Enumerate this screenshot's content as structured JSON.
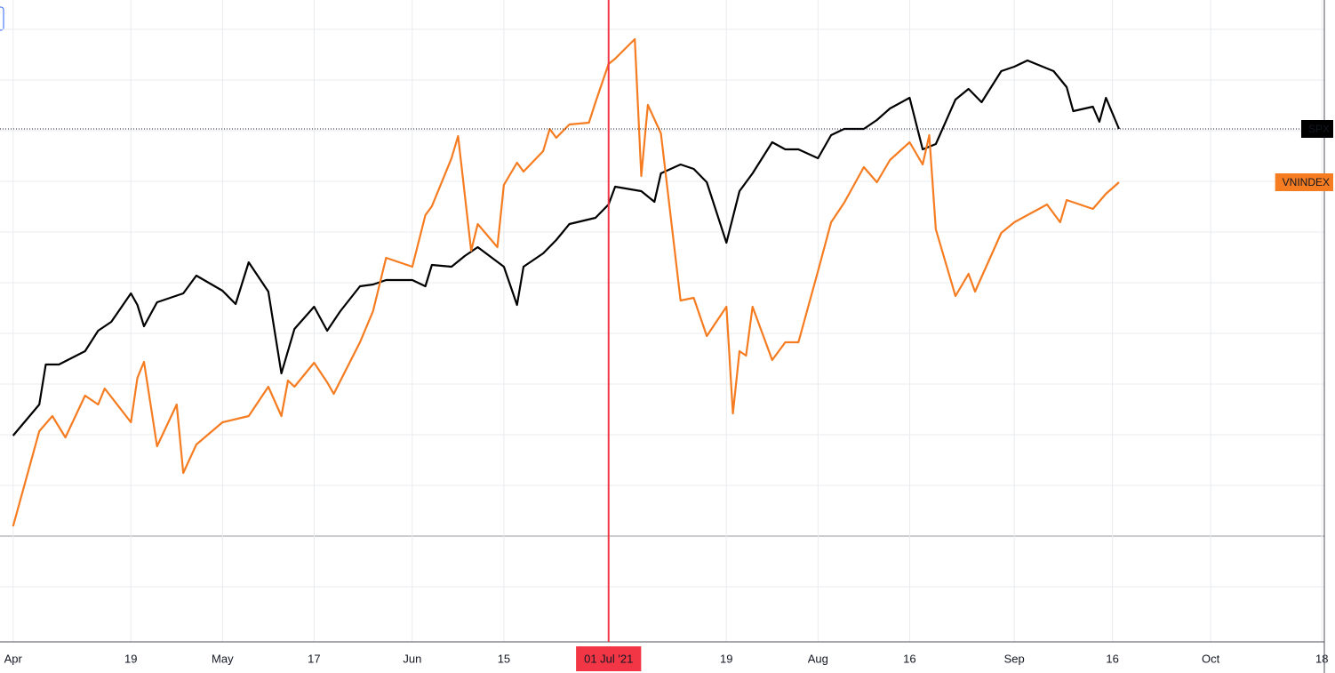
{
  "chart_data": {
    "type": "line",
    "xlim": [
      "2021-03-30",
      "2021-10-20"
    ],
    "ylim": [
      -11.9,
      60.3
    ],
    "yticks": [
      -5.7,
      0,
      5.7,
      11.4,
      17.1,
      22.8,
      28.5,
      34.2,
      39.9,
      45.6,
      51.3,
      57
    ],
    "grid": true,
    "xticks": [
      {
        "value": "2021-04-01",
        "label": "Apr"
      },
      {
        "value": "2021-04-19",
        "label": "19"
      },
      {
        "value": "2021-05-03",
        "label": "May"
      },
      {
        "value": "2021-05-17",
        "label": "17"
      },
      {
        "value": "2021-06-01",
        "label": "Jun"
      },
      {
        "value": "2021-06-15",
        "label": "15"
      },
      {
        "value": "2021-07-19",
        "label": "19"
      },
      {
        "value": "2021-08-02",
        "label": "Aug"
      },
      {
        "value": "2021-08-16",
        "label": "16"
      },
      {
        "value": "2021-09-01",
        "label": "Sep"
      },
      {
        "value": "2021-09-16",
        "label": "16"
      },
      {
        "value": "2021-10-01",
        "label": "Oct"
      },
      {
        "value": "2021-10-18",
        "label": "18"
      }
    ],
    "crosshair": {
      "x": "2021-07-01",
      "label": "01 Jul '21",
      "color": "#f23645"
    },
    "series": [
      {
        "name": "SPX",
        "color": "#000000",
        "x": [
          "2021-04-01",
          "2021-04-05",
          "2021-04-06",
          "2021-04-08",
          "2021-04-12",
          "2021-04-14",
          "2021-04-16",
          "2021-04-19",
          "2021-04-20",
          "2021-04-21",
          "2021-04-23",
          "2021-04-27",
          "2021-04-29",
          "2021-05-03",
          "2021-05-05",
          "2021-05-07",
          "2021-05-10",
          "2021-05-12",
          "2021-05-14",
          "2021-05-17",
          "2021-05-19",
          "2021-05-21",
          "2021-05-24",
          "2021-05-26",
          "2021-05-28",
          "2021-06-01",
          "2021-06-03",
          "2021-06-04",
          "2021-06-07",
          "2021-06-09",
          "2021-06-11",
          "2021-06-15",
          "2021-06-17",
          "2021-06-18",
          "2021-06-21",
          "2021-06-23",
          "2021-06-25",
          "2021-06-29",
          "2021-07-01",
          "2021-07-02",
          "2021-07-06",
          "2021-07-08",
          "2021-07-09",
          "2021-07-12",
          "2021-07-14",
          "2021-07-16",
          "2021-07-19",
          "2021-07-21",
          "2021-07-23",
          "2021-07-26",
          "2021-07-28",
          "2021-07-30",
          "2021-08-02",
          "2021-08-04",
          "2021-08-06",
          "2021-08-09",
          "2021-08-11",
          "2021-08-13",
          "2021-08-16",
          "2021-08-18",
          "2021-08-20",
          "2021-08-23",
          "2021-08-25",
          "2021-08-27",
          "2021-08-30",
          "2021-09-01",
          "2021-09-03",
          "2021-09-07",
          "2021-09-09",
          "2021-09-10",
          "2021-09-13",
          "2021-09-14",
          "2021-09-15",
          "2021-09-17"
        ],
        "values": [
          11.3,
          14.8,
          19.3,
          19.3,
          20.8,
          23.1,
          24.1,
          27.3,
          26.0,
          23.6,
          26.3,
          27.3,
          29.3,
          27.6,
          26.1,
          30.8,
          27.5,
          18.3,
          23.3,
          25.8,
          23.1,
          25.3,
          28.1,
          28.3,
          28.8,
          28.8,
          28.1,
          30.5,
          30.3,
          31.5,
          32.5,
          30.3,
          26.0,
          30.3,
          31.8,
          33.3,
          35.1,
          35.8,
          37.3,
          39.3,
          38.8,
          37.6,
          40.8,
          41.8,
          41.3,
          39.8,
          33.0,
          38.8,
          40.8,
          44.3,
          43.5,
          43.5,
          42.5,
          45.1,
          45.8,
          45.8,
          46.8,
          48.1,
          49.3,
          43.5,
          44.1,
          49.1,
          50.3,
          48.8,
          52.3,
          52.8,
          53.5,
          52.3,
          50.5,
          47.8,
          48.3,
          46.6,
          49.3,
          45.8
        ]
      },
      {
        "name": "VNINDEX",
        "color": "#f57c20",
        "x": [
          "2021-04-01",
          "2021-04-05",
          "2021-04-07",
          "2021-04-09",
          "2021-04-12",
          "2021-04-14",
          "2021-04-15",
          "2021-04-19",
          "2021-04-20",
          "2021-04-21",
          "2021-04-23",
          "2021-04-26",
          "2021-04-27",
          "2021-04-29",
          "2021-05-03",
          "2021-05-07",
          "2021-05-10",
          "2021-05-12",
          "2021-05-13",
          "2021-05-14",
          "2021-05-17",
          "2021-05-19",
          "2021-05-20",
          "2021-05-24",
          "2021-05-26",
          "2021-05-28",
          "2021-06-01",
          "2021-06-03",
          "2021-06-04",
          "2021-06-07",
          "2021-06-08",
          "2021-06-10",
          "2021-06-11",
          "2021-06-14",
          "2021-06-15",
          "2021-06-17",
          "2021-06-18",
          "2021-06-21",
          "2021-06-22",
          "2021-06-23",
          "2021-06-25",
          "2021-06-28",
          "2021-06-29",
          "2021-07-01",
          "2021-07-02",
          "2021-07-05",
          "2021-07-06",
          "2021-07-07",
          "2021-07-09",
          "2021-07-12",
          "2021-07-14",
          "2021-07-16",
          "2021-07-19",
          "2021-07-20",
          "2021-07-21",
          "2021-07-22",
          "2021-07-23",
          "2021-07-26",
          "2021-07-28",
          "2021-07-30",
          "2021-08-02",
          "2021-08-04",
          "2021-08-06",
          "2021-08-09",
          "2021-08-11",
          "2021-08-13",
          "2021-08-16",
          "2021-08-18",
          "2021-08-19",
          "2021-08-20",
          "2021-08-23",
          "2021-08-25",
          "2021-08-26",
          "2021-08-30",
          "2021-09-01",
          "2021-09-06",
          "2021-09-08",
          "2021-09-09",
          "2021-09-13",
          "2021-09-15",
          "2021-09-17"
        ],
        "values": [
          1.1,
          11.8,
          13.5,
          11.1,
          15.8,
          14.8,
          16.6,
          12.8,
          17.8,
          19.6,
          10.1,
          14.8,
          7.1,
          10.3,
          12.8,
          13.5,
          16.8,
          13.5,
          17.5,
          16.8,
          19.5,
          17.3,
          16.0,
          21.8,
          25.3,
          31.3,
          30.3,
          36.1,
          37.1,
          42.5,
          45.0,
          32.1,
          35.1,
          32.5,
          39.5,
          42.0,
          41.0,
          43.3,
          45.8,
          44.8,
          46.3,
          46.5,
          48.8,
          53.1,
          53.7,
          55.9,
          40.5,
          48.5,
          45.3,
          26.5,
          26.8,
          22.5,
          25.8,
          13.8,
          20.8,
          20.3,
          25.8,
          19.8,
          21.8,
          21.8,
          29.8,
          35.3,
          37.5,
          41.5,
          39.8,
          42.3,
          44.3,
          41.8,
          45.1,
          34.5,
          27.0,
          29.5,
          27.5,
          34.1,
          35.3,
          37.3,
          35.3,
          37.8,
          36.8,
          38.5,
          39.8
        ]
      }
    ]
  }
}
